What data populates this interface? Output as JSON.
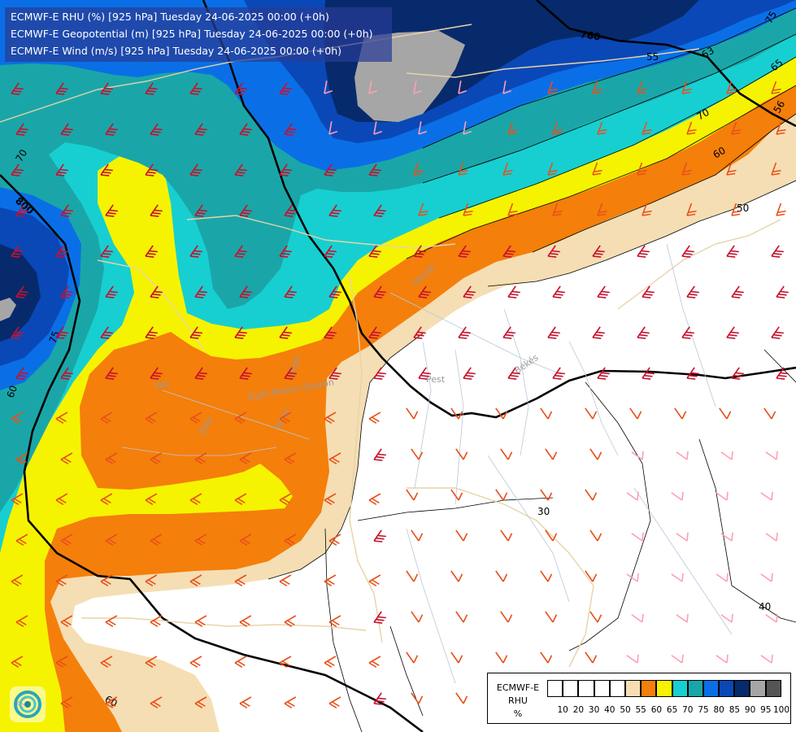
{
  "title_lines": [
    "ECMWF-E RHU (%) [925 hPa] Tuesday 24-06-2025 00:00 (+0h)",
    "ECMWF-E Geopotential (m) [925 hPa] Tuesday 24-06-2025 00:00 (+0h)",
    "ECMWF-E Wind (m/s) [925 hPa] Tuesday 24-06-2025 00:00 (+0h)"
  ],
  "geopotential_labels": [
    "760",
    "800"
  ],
  "rhu_contour_labels": [
    "75",
    "65",
    "63",
    "55",
    "56",
    "70",
    "60",
    "50",
    "30",
    "40",
    "70",
    "75",
    "60",
    "60"
  ],
  "region_labels": [
    "Heves",
    "Pest",
    "Békés",
    "Vas",
    "Győr-Moson-Sopron",
    "Zala",
    "Tolna",
    "Fejér"
  ],
  "legend": {
    "title": [
      "ECMWF-E",
      "RHU",
      "%"
    ],
    "ticks": [
      "10",
      "20",
      "30",
      "40",
      "50",
      "55",
      "60",
      "65",
      "70",
      "75",
      "80",
      "85",
      "90",
      "95",
      "100"
    ],
    "colors": [
      "#ffffff",
      "#ffffff",
      "#ffffff",
      "#ffffff",
      "#ffffff",
      "#f5deb3",
      "#f47f0b",
      "#f6f300",
      "#17cfd0",
      "#1aa6a8",
      "#0a6fe6",
      "#0a48b7",
      "#072a6c",
      "#a6a6a6",
      "#555555"
    ]
  },
  "colors": {
    "rh_55": "#f5deb3",
    "rh_60": "#f47f0b",
    "rh_65": "#f6f300",
    "rh_70": "#17cfd0",
    "rh_75": "#1aa6a8",
    "rh_80": "#0a6fe6",
    "rh_85": "#0a48b7",
    "rh_90": "#072a6c",
    "rh_95": "#a6a6a6",
    "barb_strong": "#c8102e",
    "barb_medium": "#e8501a",
    "barb_light": "#ff9fb4"
  }
}
